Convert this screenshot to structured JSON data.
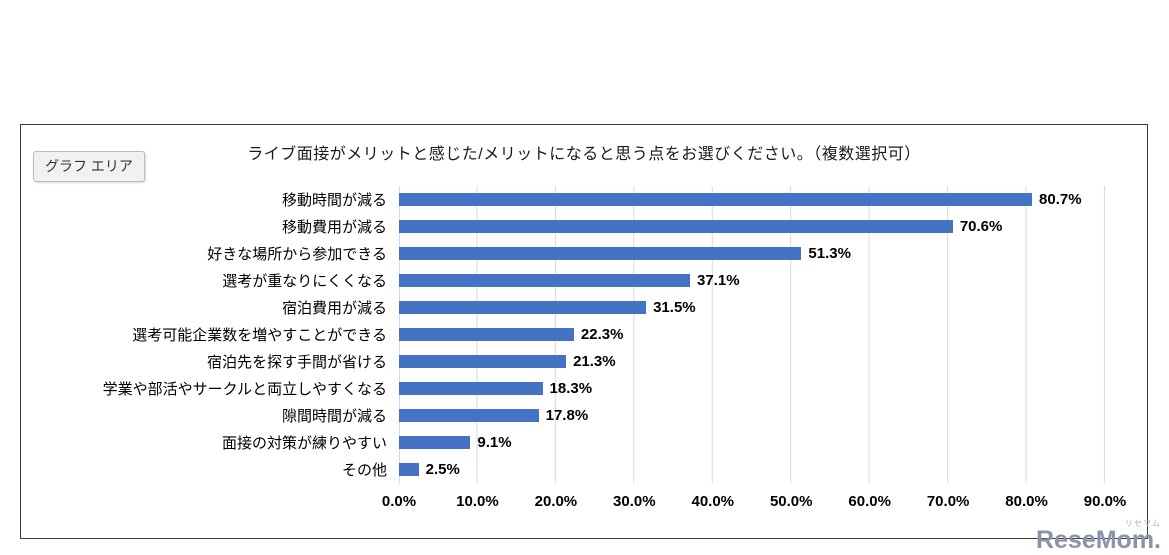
{
  "chart_area_label": "グラフ エリア",
  "watermark": {
    "main": "ReseMom.",
    "sub": "リセマム"
  },
  "chart_data": {
    "type": "bar",
    "orientation": "horizontal",
    "title": "ライブ面接がメリットと感じた/メリットになると思う点をお選びください。（複数選択可）",
    "categories": [
      "移動時間が減る",
      "移動費用が減る",
      "好きな場所から参加できる",
      "選考が重なりにくくなる",
      "宿泊費用が減る",
      "選考可能企業数を増やすことができる",
      "宿泊先を探す手間が省ける",
      "学業や部活やサークルと両立しやすくなる",
      "隙間時間が減る",
      "面接の対策が練りやすい",
      "その他"
    ],
    "values": [
      80.7,
      70.6,
      51.3,
      37.1,
      31.5,
      22.3,
      21.3,
      18.3,
      17.8,
      9.1,
      2.5
    ],
    "value_labels": [
      "80.7%",
      "70.6%",
      "51.3%",
      "37.1%",
      "31.5%",
      "22.3%",
      "21.3%",
      "18.3%",
      "17.8%",
      "9.1%",
      "2.5%"
    ],
    "x_ticks": [
      "0.0%",
      "10.0%",
      "20.0%",
      "30.0%",
      "40.0%",
      "50.0%",
      "60.0%",
      "70.0%",
      "80.0%",
      "90.0%"
    ],
    "xlim": [
      0,
      90
    ],
    "xlabel": "",
    "ylabel": "",
    "grid": "vertical",
    "legend": "none",
    "bar_color": "#4472C4",
    "gridline_color": "#d9d9d9"
  }
}
